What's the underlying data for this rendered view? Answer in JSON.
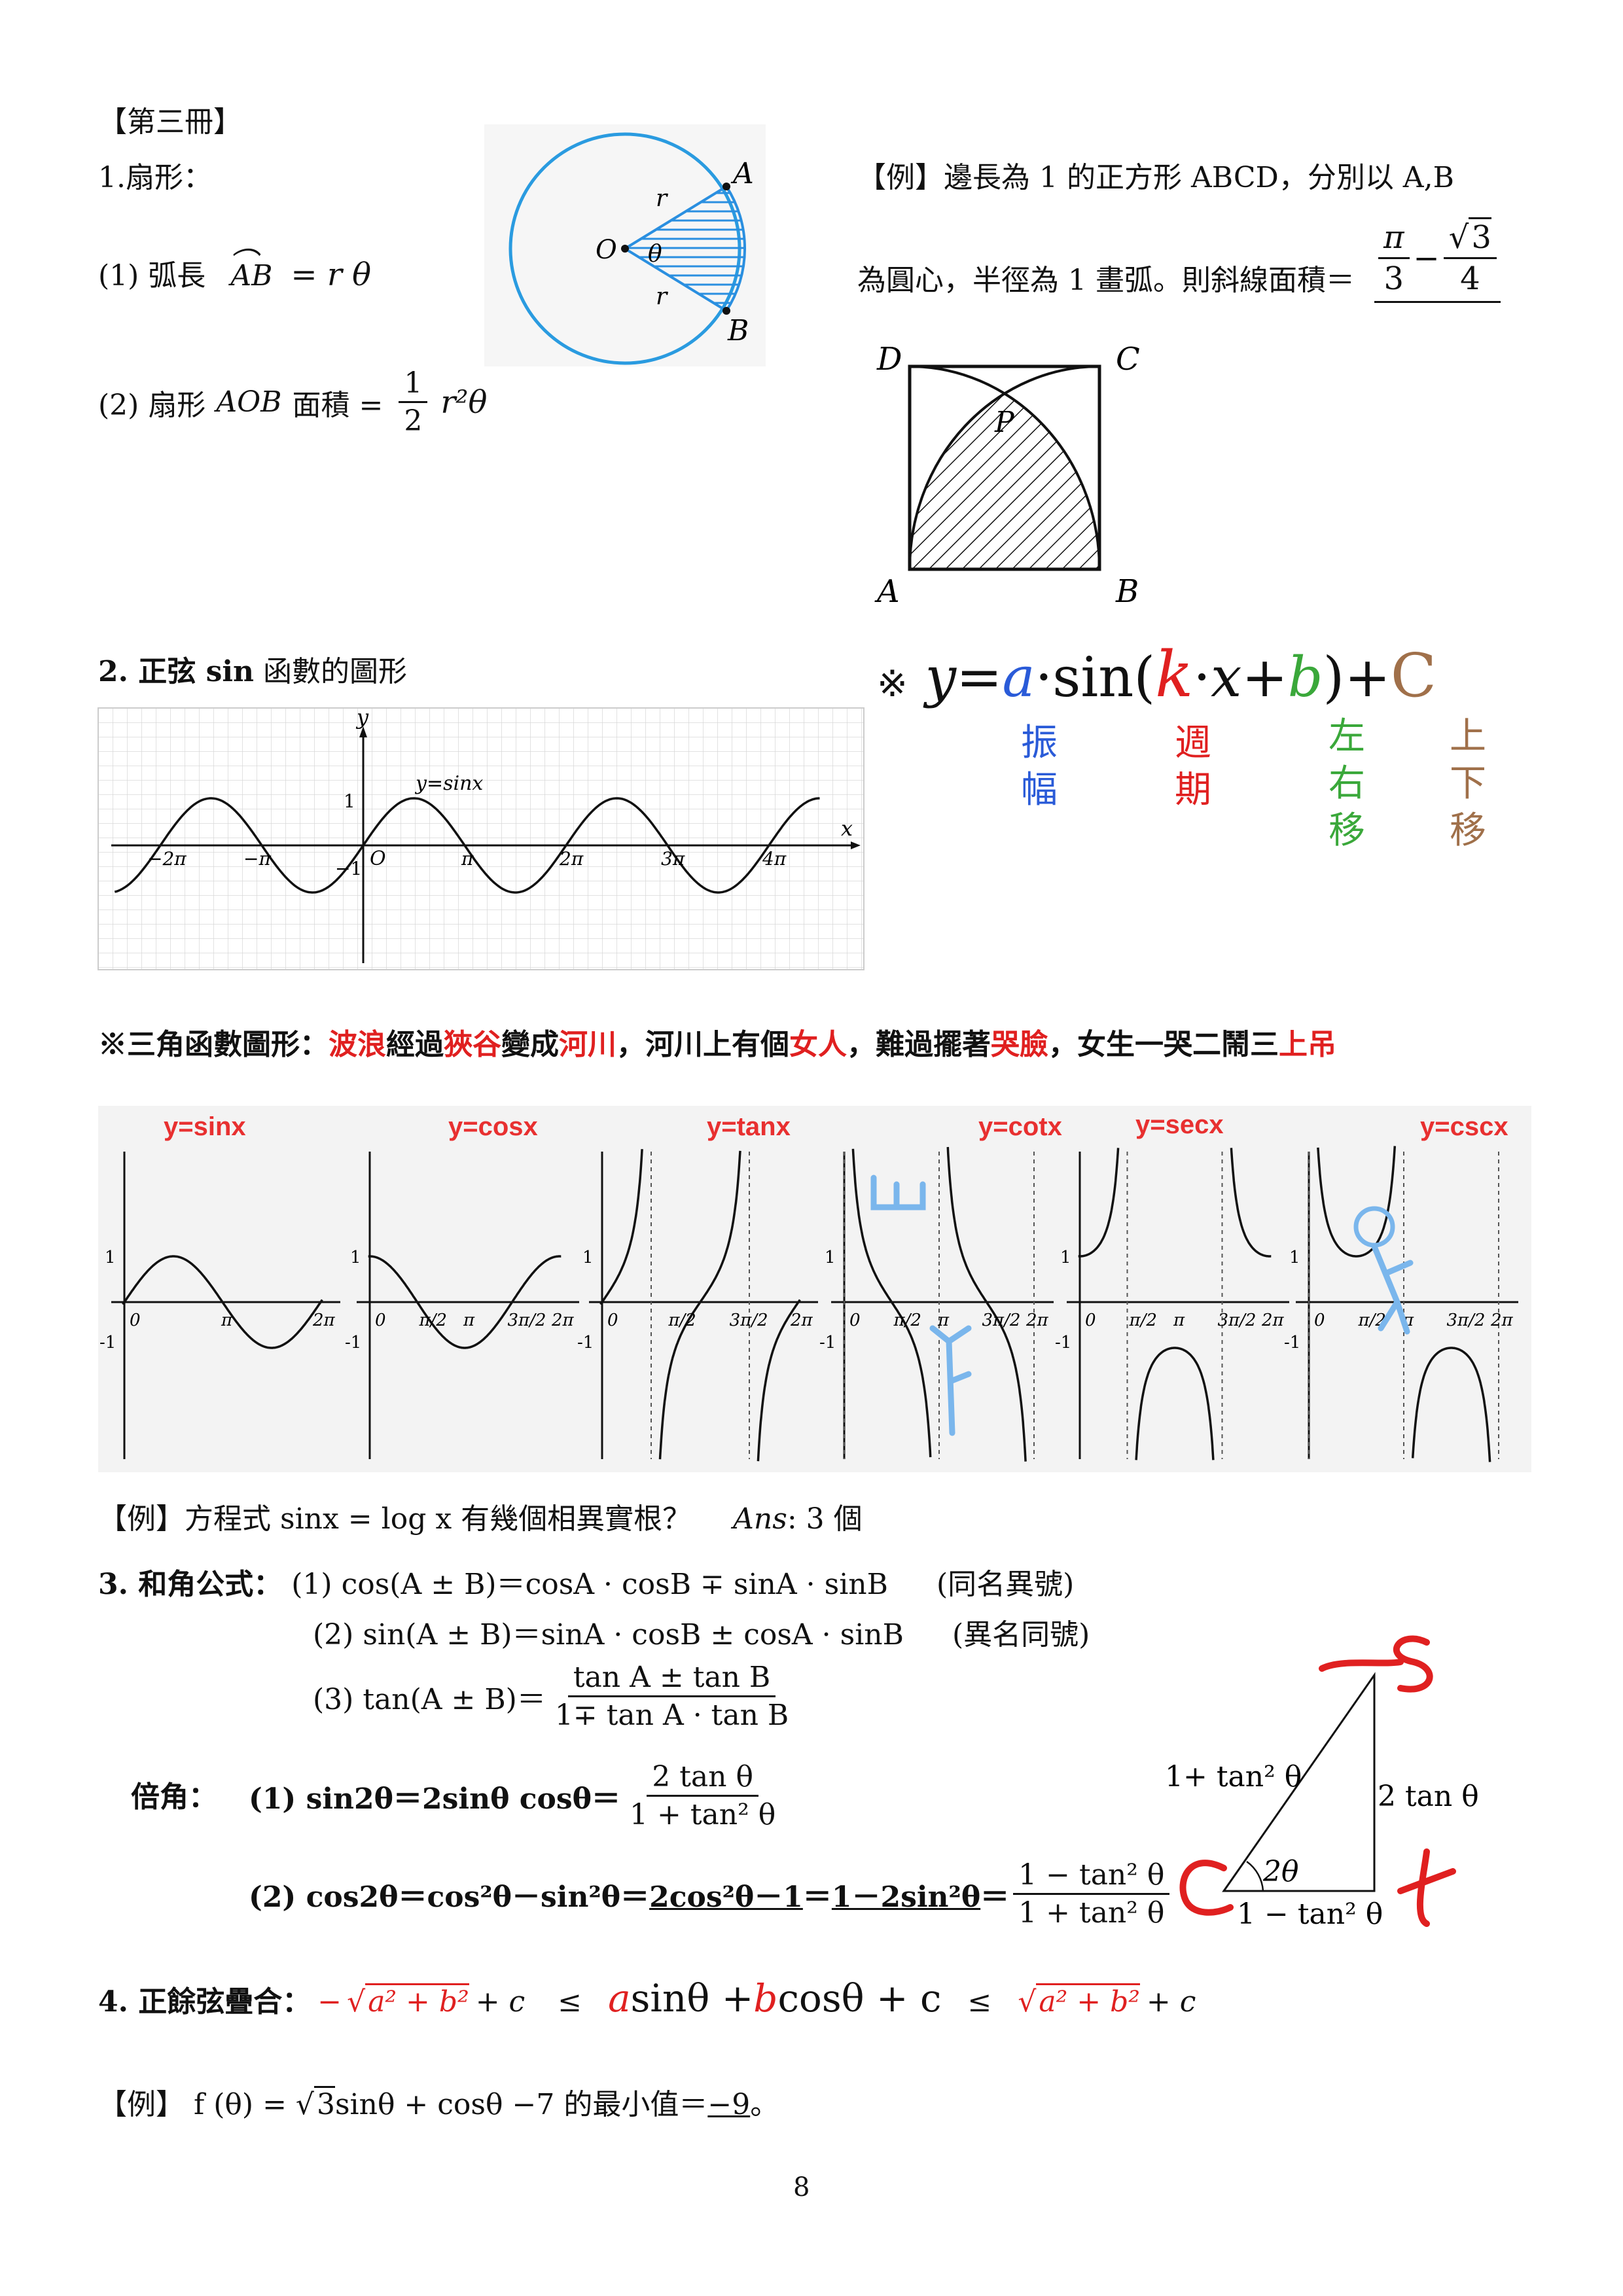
{
  "section_header": "【第三冊】",
  "sector": {
    "heading": "1.扇形：",
    "arc_length_label": "(1) 弧長",
    "arc_name": "AB",
    "arc_formula": "= r θ",
    "area_label": "(2) 扇形",
    "area_name": "AOB",
    "area_word": "面積 =",
    "area_frac_num": "1",
    "area_frac_den": "2",
    "area_tail": "r²θ",
    "diagram": {
      "A": "A",
      "B": "B",
      "O": "O",
      "theta": "θ",
      "r": "r"
    }
  },
  "example1": {
    "line1": "【例】邊長為 1 的正方形 ABCD，分別以 A,B",
    "line2": "為圓心，半徑為 1 畫弧。則斜線面積＝",
    "ans_pi": "π",
    "ans_3": "3",
    "ans_minus": "−",
    "ans_root": "3",
    "ans_4": "4",
    "labels": {
      "A": "A",
      "B": "B",
      "C": "C",
      "D": "D",
      "P": "P"
    }
  },
  "sine": {
    "heading": "2. 正弦 sin",
    "heading_tail": "函數的圖形",
    "graph": {
      "y_axis": "y",
      "x_axis": "x",
      "curve": "y=sinx",
      "origin": "O",
      "ticks_x": [
        "−2π",
        "−π",
        "π",
        "2π",
        "3π",
        "4π"
      ],
      "tick_y_pos": "1",
      "tick_y_neg": "−1"
    },
    "formula_mark": "※",
    "formula": {
      "y": "y",
      "eq": "=",
      "a": "a",
      "dot1": "·",
      "sin": "sin(",
      "k": "k",
      "dot2": "·",
      "x": "x",
      "plus1": "+",
      "b": "b",
      "close": ")",
      "plus2": "+",
      "C": "C"
    },
    "annotations": {
      "a": [
        "振",
        "幅"
      ],
      "k": [
        "週",
        "期"
      ],
      "b": [
        "左",
        "右",
        "移"
      ],
      "C": [
        "上",
        "下",
        "移"
      ]
    }
  },
  "mnemonic": [
    {
      "text": "※三角函數圖形：",
      "color": "#111"
    },
    {
      "text": "波浪",
      "color": "#e02020"
    },
    {
      "text": "經過",
      "color": "#111"
    },
    {
      "text": "狹谷",
      "color": "#e02020"
    },
    {
      "text": "變成",
      "color": "#111"
    },
    {
      "text": "河川",
      "color": "#e02020"
    },
    {
      "text": "，河川上有個",
      "color": "#111"
    },
    {
      "text": "女人",
      "color": "#e02020"
    },
    {
      "text": "，難過擺著",
      "color": "#111"
    },
    {
      "text": "哭臉",
      "color": "#e02020"
    },
    {
      "text": "，女生一哭二鬧三",
      "color": "#111"
    },
    {
      "text": "上吊",
      "color": "#e02020"
    }
  ],
  "graphs": [
    {
      "label": "y=sinx",
      "ticks": [
        "0",
        "π",
        "2π"
      ],
      "y1": "1",
      "yn1": "-1"
    },
    {
      "label": "y=cosx",
      "ticks": [
        "0",
        "π/2",
        "π",
        "3π/2",
        "2π"
      ],
      "y1": "1",
      "yn1": "-1"
    },
    {
      "label": "y=tanx",
      "ticks": [
        "0",
        "π/2",
        "3π/2",
        "2π"
      ],
      "y1": "1",
      "yn1": "-1"
    },
    {
      "label": "y=cotx",
      "ticks": [
        "0",
        "π/2",
        "π",
        "3π/2",
        "2π"
      ],
      "y1": "1",
      "yn1": "-1"
    },
    {
      "label": "y=secx",
      "ticks": [
        "0",
        "π/2",
        "π",
        "3π/2",
        "2π"
      ],
      "y1": "1",
      "yn1": "-1"
    },
    {
      "label": "y=cscx",
      "ticks": [
        "0",
        "π/2",
        "π",
        "3π/2",
        "2π"
      ],
      "y1": "1",
      "yn1": "-1"
    }
  ],
  "example2": {
    "text": "【例】方程式 sinx = log x 有幾個相異實根？",
    "ans_label": "Ans",
    "ans_value": ": 3 個"
  },
  "sum_angle": {
    "heading": "3. 和角公式：",
    "f1": "(1) cos(A ± B)＝cosA · cosB ∓ sinA · sinB",
    "f1_note": "(同名異號)",
    "f2": "(2) sin(A ± B)＝sinA · cosB ± cosA · sinB",
    "f2_note": "(異名同號)",
    "f3_label": "(3) tan(A ± B)＝",
    "f3_num": "tan A ± tan B",
    "f3_den": "1∓ tan A · tan B"
  },
  "double_angle": {
    "heading": "倍角：",
    "d1_label": "(1) sin2θ＝2sinθ cosθ＝",
    "d1_num": "2 tan θ",
    "d1_den": "1 + tan² θ",
    "d2_pre": "(2) cos2θ＝cos²θ－sin²θ＝",
    "d2_u1": "2cos²θ－1",
    "d2_eq": "＝",
    "d2_u2": "1－2sin²θ",
    "d2_eq2": "＝",
    "d2_num": "1 − tan² θ",
    "d2_den": "1 + tan² θ"
  },
  "triangle": {
    "hyp": "1+ tan² θ",
    "opp": "2 tan θ",
    "adj": "1 − tan² θ",
    "angle": "2θ",
    "hand_s": "s",
    "hand_c": "c",
    "hand_t": "t"
  },
  "aux_angle": {
    "heading": "4. 正餘弦疊合：",
    "left_neg": "−",
    "left_root": "a² + b²",
    "left_tail": "+ c",
    "le1": "≤",
    "mid_a": "a",
    "mid_sin": "sinθ +",
    "mid_b": "b",
    "mid_cos": "cosθ + c",
    "le2": "≤",
    "right_root": "a² + b²",
    "right_tail": "+ c"
  },
  "example3": {
    "prefix": "【例】 f (θ) = ",
    "root": "3",
    "body": "sinθ + cosθ −7 的最小值＝",
    "answer": "−9",
    "suffix": "。"
  },
  "page_number": "8"
}
